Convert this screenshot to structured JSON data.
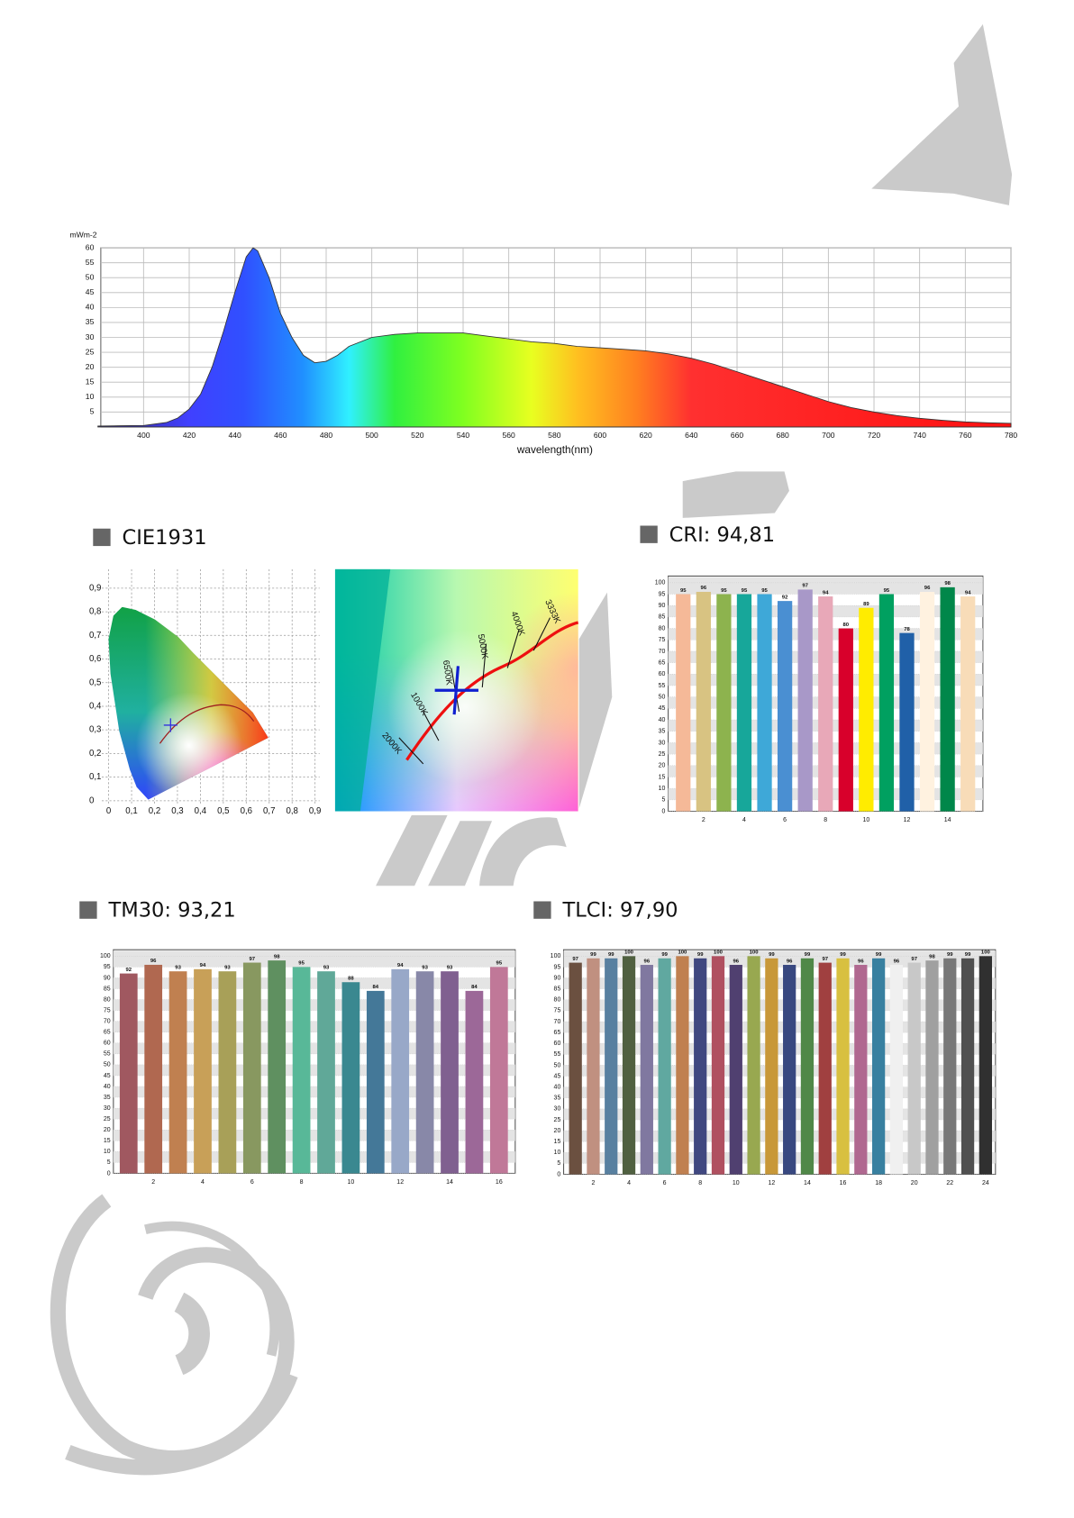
{
  "chart_data": [
    {
      "type": "area",
      "ylabel": "mWm-2",
      "xlabel": "wavelength(nm)",
      "x": [
        380,
        390,
        400,
        410,
        415,
        420,
        425,
        430,
        435,
        440,
        445,
        448,
        450,
        455,
        460,
        465,
        470,
        475,
        480,
        485,
        490,
        500,
        510,
        520,
        530,
        540,
        550,
        560,
        570,
        580,
        590,
        600,
        610,
        620,
        630,
        640,
        650,
        660,
        670,
        680,
        690,
        700,
        710,
        720,
        730,
        740,
        750,
        760,
        770,
        780
      ],
      "values": [
        0.3,
        0.4,
        0.5,
        1.5,
        3,
        6,
        11,
        20,
        32,
        45,
        57,
        60,
        59,
        50,
        38,
        30,
        24,
        21.5,
        22,
        24,
        27,
        30,
        31,
        31.5,
        31.5,
        31.5,
        30.5,
        29.5,
        28.5,
        28,
        27,
        26.5,
        26,
        25.5,
        24.5,
        23,
        21,
        18.5,
        16,
        13.5,
        11,
        8.5,
        6.5,
        5,
        3.8,
        2.9,
        2.2,
        1.7,
        1.4,
        1.2
      ],
      "xlim": [
        380,
        780
      ],
      "ylim": [
        0,
        60
      ],
      "xticks": [
        400,
        420,
        440,
        460,
        480,
        500,
        520,
        540,
        560,
        580,
        600,
        620,
        640,
        660,
        680,
        700,
        720,
        740,
        760,
        780
      ],
      "yticks": [
        5,
        10,
        15,
        20,
        25,
        30,
        35,
        40,
        45,
        50,
        55,
        60
      ],
      "grid": true
    },
    {
      "type": "scatter",
      "title": "CIE1931",
      "x": [
        0.27
      ],
      "values": [
        0.32
      ],
      "color": "#3030e0",
      "xlim": [
        -0.03,
        0.92
      ],
      "ylim": [
        -0.02,
        0.98
      ],
      "xticks": [
        0,
        {
          "value": 0.1,
          "label": "0,1"
        },
        {
          "value": 0.2,
          "label": "0,2"
        },
        {
          "value": 0.3,
          "label": "0,3"
        },
        {
          "value": 0.4,
          "label": "0,4"
        },
        {
          "value": 0.5,
          "label": "0,5"
        },
        {
          "value": 0.6,
          "label": "0,6"
        },
        {
          "value": 0.7,
          "label": "0,7"
        },
        {
          "value": 0.8,
          "label": "0,8"
        },
        {
          "value": 0.9,
          "label": "0,9"
        }
      ],
      "yticks": [
        0,
        {
          "value": 0.1,
          "label": "0,1"
        },
        {
          "value": 0.2,
          "label": "0,2"
        },
        {
          "value": 0.3,
          "label": "0,3"
        },
        {
          "value": 0.4,
          "label": "0,4"
        },
        {
          "value": 0.5,
          "label": "0,5"
        },
        {
          "value": 0.6,
          "label": "0,6"
        },
        {
          "value": 0.7,
          "label": "0,7"
        },
        {
          "value": 0.8,
          "label": "0,8"
        },
        {
          "value": 0.9,
          "label": "0,9"
        }
      ],
      "grid": true,
      "annotations": [
        "2000K",
        "1000K",
        "6500K",
        "5000K",
        "4000K",
        "3333K"
      ]
    },
    {
      "type": "bar",
      "title": "CRI: 94,81",
      "categories": [
        null,
        "2",
        null,
        "4",
        null,
        "6",
        null,
        "8",
        null,
        "10",
        null,
        "12",
        null,
        "14",
        null
      ],
      "values": [
        95,
        96,
        95,
        95,
        95,
        92,
        97,
        94,
        80,
        89,
        95,
        78,
        96,
        98,
        94
      ],
      "colors": [
        "#f5b998",
        "#d8c382",
        "#8db34e",
        "#17a79a",
        "#3ea8d8",
        "#4a8fd2",
        "#a898c8",
        "#e8a8b8",
        "#d8002b",
        "#ffec00",
        "#00a060",
        "#2060a8",
        "#fff2e0",
        "#00874a",
        "#f8dcb8"
      ],
      "ylim": [
        0,
        102.5
      ],
      "yticks": [
        0,
        5,
        10,
        15,
        20,
        25,
        30,
        35,
        40,
        45,
        50,
        55,
        60,
        65,
        70,
        75,
        80,
        85,
        90,
        95,
        100
      ]
    },
    {
      "type": "bar",
      "title": "TM30: 93,21",
      "categories": [
        null,
        "2",
        null,
        "4",
        null,
        "6",
        null,
        "8",
        null,
        "10",
        null,
        "12",
        null,
        "14",
        null,
        "16"
      ],
      "values": [
        92,
        96,
        93,
        94,
        93,
        97,
        98,
        95,
        93,
        88,
        84,
        94,
        93,
        93,
        84,
        95
      ],
      "colors": [
        "#a05860",
        "#b06850",
        "#c08050",
        "#c8a058",
        "#a8a058",
        "#889860",
        "#5f9060",
        "#58b898",
        "#60a898",
        "#3a8890",
        "#447898",
        "#98a8c8",
        "#8888a8",
        "#806090",
        "#9c6898",
        "#c07898"
      ],
      "ylim": [
        0,
        102.5
      ],
      "yticks": [
        0,
        5,
        10,
        15,
        20,
        25,
        30,
        35,
        40,
        45,
        50,
        55,
        60,
        65,
        70,
        75,
        80,
        85,
        90,
        95,
        100
      ]
    },
    {
      "type": "bar",
      "title": "TLCI: 97,90",
      "categories": [
        null,
        "2",
        null,
        "4",
        null,
        "6",
        null,
        "8",
        null,
        "10",
        null,
        "12",
        null,
        "14",
        null,
        "16",
        null,
        "18",
        null,
        "20",
        null,
        "22",
        null,
        "24"
      ],
      "values": [
        97,
        99,
        99,
        100,
        96,
        99,
        100,
        99,
        100,
        96,
        100,
        99,
        96,
        99,
        97,
        99,
        96,
        99,
        96,
        97,
        98,
        99,
        99,
        100
      ],
      "colors": [
        "#6b5040",
        "#c09080",
        "#5880a0",
        "#506040",
        "#8078a0",
        "#60a8a0",
        "#c08050",
        "#404880",
        "#b05060",
        "#504070",
        "#98a850",
        "#c89838",
        "#384880",
        "#508848",
        "#a04040",
        "#d8c040",
        "#b06890",
        "#3880a0",
        "#f0f0f0",
        "#c8c8c8",
        "#a0a0a0",
        "#787878",
        "#505050",
        "#303030"
      ],
      "ylim": [
        0,
        102.5
      ],
      "yticks": [
        0,
        5,
        10,
        15,
        20,
        25,
        30,
        35,
        40,
        45,
        50,
        55,
        60,
        65,
        70,
        75,
        80,
        85,
        90,
        95,
        100
      ]
    }
  ]
}
